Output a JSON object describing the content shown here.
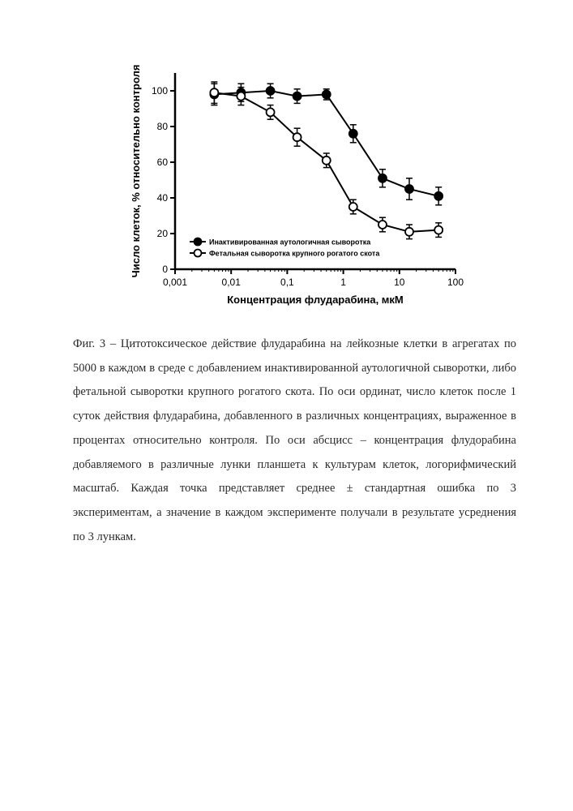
{
  "chart": {
    "type": "line",
    "xlabel": "Концентрация флударабина, мкМ",
    "ylabel": "Число клеток, % относительно контроля",
    "x_scale": "log",
    "xlim": [
      0.001,
      100
    ],
    "ylim": [
      0,
      110
    ],
    "x_ticks": [
      0.001,
      0.01,
      0.1,
      1,
      10,
      100
    ],
    "x_tick_labels": [
      "0,001",
      "0,01",
      "0,1",
      "1",
      "10",
      "100"
    ],
    "y_ticks": [
      0,
      20,
      40,
      60,
      80,
      100
    ],
    "y_tick_labels": [
      "0",
      "20",
      "40",
      "60",
      "80",
      "100"
    ],
    "axis_color": "#000000",
    "background_color": "#ffffff",
    "line_width": 2,
    "axis_line_width": 2.5,
    "tick_fontsize": 12,
    "label_fontsize": 13,
    "label_fontweight": "bold",
    "legend_fontsize": 9,
    "legend_fontweight": "bold",
    "marker_size": 5,
    "error_cap": 4,
    "series": [
      {
        "name": "Инактивированная аутологичная сыворотка",
        "marker": "circle-filled",
        "color": "#000000",
        "fill": "#000000",
        "x": [
          0.005,
          0.015,
          0.05,
          0.15,
          0.5,
          1.5,
          5,
          15,
          50
        ],
        "y": [
          98,
          99,
          100,
          97,
          98,
          76,
          51,
          45,
          41
        ],
        "err": [
          6,
          5,
          4,
          4,
          3,
          5,
          5,
          6,
          5
        ]
      },
      {
        "name": "Фетальная сыворотка крупного рогатого скота",
        "marker": "circle-open",
        "color": "#000000",
        "fill": "#ffffff",
        "x": [
          0.005,
          0.015,
          0.05,
          0.15,
          0.5,
          1.5,
          5,
          15,
          50
        ],
        "y": [
          99,
          97,
          88,
          74,
          61,
          35,
          25,
          21,
          22
        ],
        "err": [
          6,
          5,
          4,
          5,
          4,
          4,
          4,
          4,
          4
        ]
      }
    ],
    "legend_position": "inside-bottom-left"
  },
  "caption": {
    "text": "Фиг. 3 – Цитотоксическое действие флударабина на лейкозные клетки в агрегатах по 5000 в каждом в среде с добавлением инактивированной аутологичной сыворотки, либо фетальной сыворотки крупного рогатого скота. По оси ординат, число клеток после 1 суток действия флударабина, добавленного в различных концентрациях, выраженное в процентах относительно контроля. По оси абсцисс – концентрация флудорабина добавляемого в различные лунки планшета к культурам клеток, логорифмический масштаб. Каждая точка представляет среднее ± стандартная ошибка по 3 экспериментам, а значение в каждом эксперименте получали в результате усреднения по 3 лункам."
  }
}
